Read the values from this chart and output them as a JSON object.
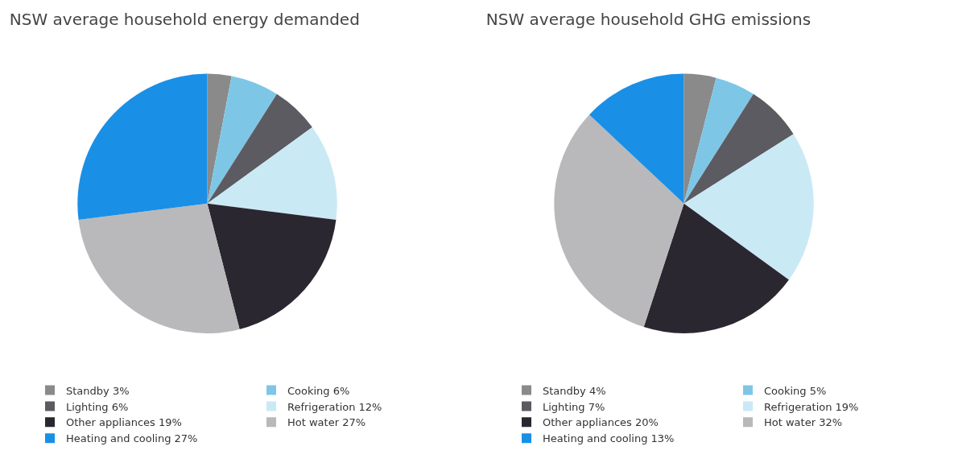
{
  "chart_data": [
    {
      "type": "pie",
      "title": "NSW average household energy demanded",
      "categories": [
        "Standby 3%",
        "Cooking 6%",
        "Lighting 6%",
        "Refrigeration 12%",
        "Other appliances 19%",
        "Hot water 27%",
        "Heating and cooling 27%"
      ],
      "values": [
        3,
        6,
        6,
        12,
        19,
        27,
        27
      ],
      "colors": [
        "#8a8a8a",
        "#7ec6e6",
        "#5c5b62",
        "#c9e9f5",
        "#2b2730",
        "#b9b9bb",
        "#1a8fe6"
      ],
      "legend": "bottom"
    },
    {
      "type": "pie",
      "title": "NSW average household GHG emissions",
      "categories": [
        "Standby 4%",
        "Cooking 5%",
        "Lighting 7%",
        "Refrigeration 19%",
        "Other appliances 20%",
        "Hot water 32%",
        "Heating and cooling 13%"
      ],
      "values": [
        4,
        5,
        7,
        19,
        20,
        32,
        13
      ],
      "colors": [
        "#8a8a8a",
        "#7ec6e6",
        "#5c5b62",
        "#c9e9f5",
        "#2b2730",
        "#b9b9bb",
        "#1a8fe6"
      ],
      "legend": "bottom"
    }
  ]
}
